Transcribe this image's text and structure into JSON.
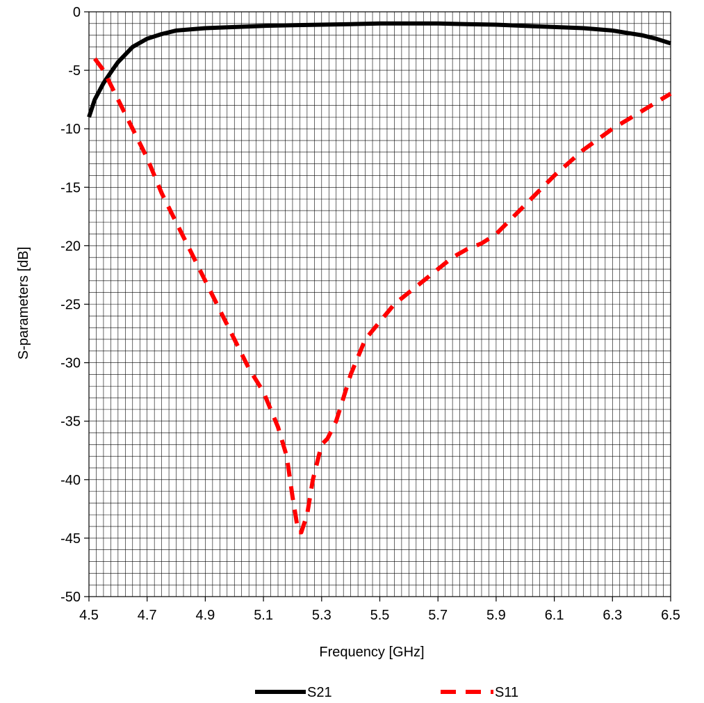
{
  "chart_data": {
    "type": "line",
    "xlabel": "Frequency [GHz]",
    "ylabel": "S-parameters [dB]",
    "xlim": [
      4.5,
      6.5
    ],
    "ylim": [
      -50,
      0
    ],
    "x_ticks": [
      4.5,
      4.7,
      4.9,
      5.1,
      5.3,
      5.5,
      5.7,
      5.9,
      6.1,
      6.3,
      6.5
    ],
    "x_tick_labels": [
      "4.5",
      "4.7",
      "4.9",
      "5.1",
      "5.3",
      "5.5",
      "5.7",
      "5.9",
      "6.1",
      "6.3",
      "6.5"
    ],
    "y_ticks": [
      0,
      -5,
      -10,
      -15,
      -20,
      -25,
      -30,
      -35,
      -40,
      -45,
      -50
    ],
    "y_tick_labels": [
      "0",
      "-5",
      "-10",
      "-15",
      "-20",
      "-25",
      "-30",
      "-35",
      "-40",
      "-45",
      "-50"
    ],
    "grid": true,
    "grid_minor_x_step": 0.025,
    "grid_minor_y_step": 1,
    "legend_position": "bottom",
    "series": [
      {
        "name": "S21",
        "color": "#000000",
        "style": "solid",
        "x": [
          4.5,
          4.52,
          4.55,
          4.58,
          4.6,
          4.65,
          4.7,
          4.75,
          4.8,
          4.9,
          5.0,
          5.1,
          5.2,
          5.3,
          5.4,
          5.5,
          5.6,
          5.7,
          5.8,
          5.9,
          6.0,
          6.1,
          6.2,
          6.3,
          6.35,
          6.4,
          6.45,
          6.5
        ],
        "y": [
          -9.0,
          -7.5,
          -6.1,
          -5.0,
          -4.3,
          -3.0,
          -2.3,
          -1.9,
          -1.6,
          -1.4,
          -1.3,
          -1.2,
          -1.15,
          -1.1,
          -1.05,
          -1.0,
          -1.0,
          -1.0,
          -1.05,
          -1.1,
          -1.2,
          -1.3,
          -1.4,
          -1.6,
          -1.8,
          -2.0,
          -2.3,
          -2.7
        ]
      },
      {
        "name": "S11",
        "color": "#ff0000",
        "style": "dashed",
        "x": [
          4.52,
          4.55,
          4.58,
          4.6,
          4.65,
          4.7,
          4.75,
          4.8,
          4.85,
          4.9,
          4.95,
          5.0,
          5.05,
          5.1,
          5.15,
          5.18,
          5.2,
          5.22,
          5.23,
          5.25,
          5.27,
          5.3,
          5.32,
          5.35,
          5.4,
          5.45,
          5.5,
          5.55,
          5.6,
          5.65,
          5.7,
          5.75,
          5.8,
          5.85,
          5.9,
          6.0,
          6.1,
          6.2,
          6.3,
          6.4,
          6.5
        ],
        "y": [
          -4.0,
          -5.0,
          -6.5,
          -7.5,
          -10.0,
          -12.5,
          -15.5,
          -18.0,
          -20.5,
          -23.0,
          -25.5,
          -28.0,
          -30.5,
          -32.5,
          -35.5,
          -38.0,
          -41.5,
          -44.5,
          -44.5,
          -43.0,
          -40.0,
          -37.0,
          -36.5,
          -35.0,
          -31.0,
          -28.0,
          -26.5,
          -25.0,
          -24.0,
          -23.0,
          -22.0,
          -21.0,
          -20.3,
          -19.8,
          -19.0,
          -16.5,
          -14.0,
          -11.8,
          -10.0,
          -8.5,
          -7.0
        ]
      }
    ]
  }
}
